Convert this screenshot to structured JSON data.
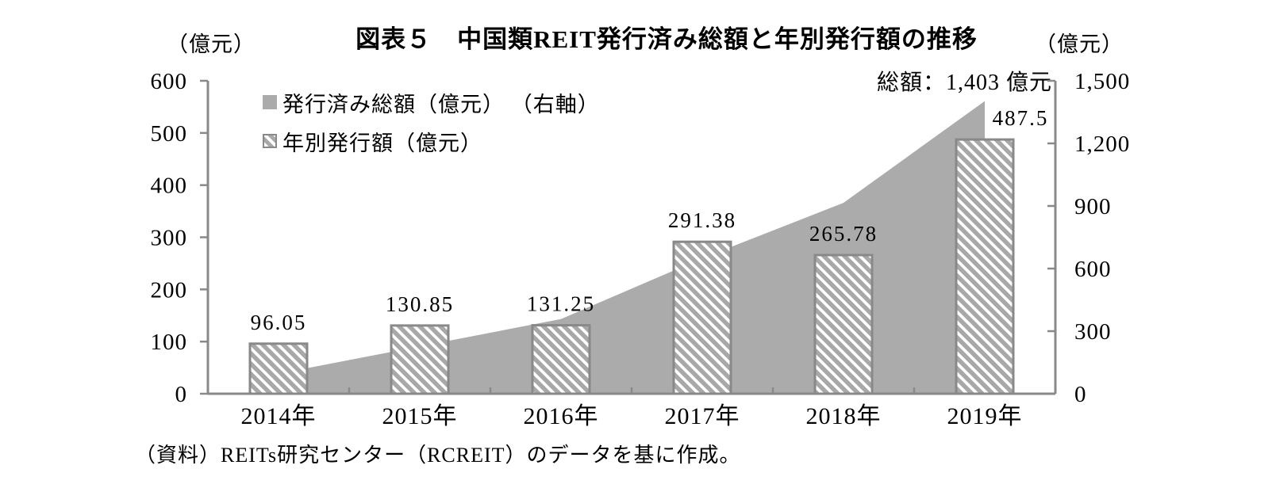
{
  "title": "図表５　中国類REIT発行済み総額と年別発行額の推移",
  "annotation": "総額：1,403 億元",
  "source": "（資料）REITs研究センター（RCREIT）のデータを基に作成。",
  "legend": {
    "items": [
      {
        "label": "発行済み総額（億元） （右軸）",
        "swatch": "solid-square-icon"
      },
      {
        "label": "年別発行額（億元）",
        "swatch": "hatch-square-icon"
      }
    ]
  },
  "colors": {
    "area_fill": "#ababab",
    "hatch_stripe": "#a8a8a8",
    "bar_border": "#898989",
    "axis": "#898989",
    "text": "#000000",
    "background": "#ffffff"
  },
  "chart_data": {
    "type": "combo",
    "subtypes": [
      "area",
      "bar"
    ],
    "categories": [
      "2014年",
      "2015年",
      "2016年",
      "2017年",
      "2018年",
      "2019年"
    ],
    "series": [
      {
        "name": "発行済み総額（億元）（右軸）",
        "type": "area",
        "axis": "right",
        "values": [
          96.05,
          226.9,
          358.15,
          649.53,
          915.31,
          1402.81
        ]
      },
      {
        "name": "年別発行額（億元）",
        "type": "bar",
        "axis": "left",
        "values": [
          96.05,
          130.85,
          131.25,
          291.38,
          265.78,
          487.5
        ],
        "labels": [
          "96.05",
          "130.85",
          "131.25",
          "291.38",
          "265.78",
          "487.5"
        ]
      }
    ],
    "left_axis": {
      "unit": "（億元）",
      "range": [
        0,
        600
      ],
      "ticks": [
        "600",
        "500",
        "400",
        "300",
        "200",
        "100",
        "0"
      ]
    },
    "right_axis": {
      "unit": "（億元）",
      "range": [
        0,
        1500
      ],
      "ticks": [
        "1,500",
        "1,200",
        "900",
        "600",
        "300",
        "0"
      ]
    },
    "total_annotation": "総額：1,403 億元",
    "grid": false,
    "legend_position": "inside-top-left"
  }
}
